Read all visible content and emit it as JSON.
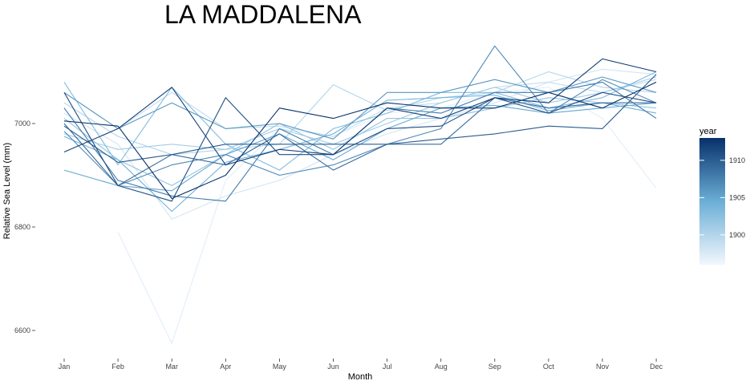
{
  "chart_data": {
    "type": "line",
    "title": "LA MADDALENA",
    "xlabel": "Month",
    "ylabel": "Relative Sea Level (mm)",
    "categories": [
      "Jan",
      "Feb",
      "Mar",
      "Apr",
      "May",
      "Jun",
      "Jul",
      "Aug",
      "Sep",
      "Oct",
      "Nov",
      "Dec"
    ],
    "ylim": [
      6545,
      7150
    ],
    "yticks": [
      6600,
      6800,
      7000
    ],
    "grid": false,
    "legend": {
      "title": "year",
      "placement": "right",
      "ticks": [
        1900,
        1905,
        1910
      ],
      "range": [
        1896,
        1913
      ],
      "color_low": "#f2f7fd",
      "color_high": "#08306b"
    },
    "series": [
      {
        "year": 1897,
        "values": [
          null,
          6790,
          6575,
          6890,
          6990,
          6975,
          7020,
          7030,
          7060,
          7070,
          7010,
          6875
        ]
      },
      {
        "year": 1898,
        "values": [
          7020,
          6960,
          6815,
          6860,
          6890,
          6940,
          6980,
          7010,
          7040,
          7080,
          7105,
          7095
        ]
      },
      {
        "year": 1899,
        "values": [
          7060,
          6990,
          7060,
          6990,
          6995,
          6975,
          7030,
          7040,
          7070,
          7080,
          7060,
          7085
        ]
      },
      {
        "year": 1900,
        "values": [
          7040,
          6975,
          6940,
          6950,
          6960,
          7075,
          7025,
          7050,
          7060,
          7100,
          7070,
          7060
        ]
      },
      {
        "year": 1901,
        "values": [
          6980,
          6950,
          6960,
          6950,
          6990,
          6960,
          7000,
          7040,
          7070,
          7040,
          7060,
          7090
        ]
      },
      {
        "year": 1902,
        "values": [
          7010,
          6930,
          6880,
          6940,
          7000,
          6950,
          7010,
          7010,
          7030,
          7050,
          7040,
          7030
        ]
      },
      {
        "year": 1903,
        "values": [
          7080,
          6920,
          7070,
          6960,
          6910,
          6990,
          7020,
          7060,
          7060,
          7030,
          7050,
          7100
        ]
      },
      {
        "year": 1904,
        "values": [
          6975,
          6930,
          6830,
          6925,
          6950,
          6980,
          7045,
          7050,
          7055,
          7025,
          7040,
          7020
        ]
      },
      {
        "year": 1905,
        "values": [
          6910,
          6880,
          6870,
          6940,
          6980,
          6930,
          6990,
          7030,
          7035,
          7020,
          7030,
          7040
        ]
      },
      {
        "year": 1906,
        "values": [
          7060,
          6990,
          7040,
          6990,
          7000,
          6970,
          7060,
          7060,
          7085,
          7060,
          7090,
          7060
        ]
      },
      {
        "year": 1907,
        "values": [
          6985,
          6880,
          6920,
          6940,
          6900,
          6920,
          6960,
          6990,
          7150,
          7020,
          7085,
          7040
        ]
      },
      {
        "year": 1908,
        "values": [
          7030,
          6890,
          6860,
          6850,
          6990,
          6940,
          7030,
          7020,
          7060,
          7060,
          7080,
          7010
        ]
      },
      {
        "year": 1909,
        "values": [
          7000,
          6880,
          6940,
          6920,
          6980,
          6910,
          6960,
          6960,
          7050,
          7030,
          7040,
          7040
        ]
      },
      {
        "year": 1910,
        "values": [
          6995,
          6925,
          6940,
          6960,
          6960,
          6960,
          6960,
          6970,
          6980,
          6995,
          6990,
          7095
        ]
      },
      {
        "year": 1911,
        "values": [
          7060,
          6880,
          6850,
          7050,
          6940,
          6940,
          6990,
          6995,
          7050,
          7020,
          7060,
          7040
        ]
      },
      {
        "year": 1912,
        "values": [
          6945,
          6990,
          7070,
          6920,
          6950,
          6940,
          7030,
          7010,
          7050,
          7040,
          7125,
          7100
        ]
      },
      {
        "year": 1913,
        "values": [
          7005,
          6995,
          6855,
          6900,
          7030,
          7010,
          7040,
          7030,
          7030,
          7060,
          7030,
          7080
        ]
      }
    ]
  }
}
